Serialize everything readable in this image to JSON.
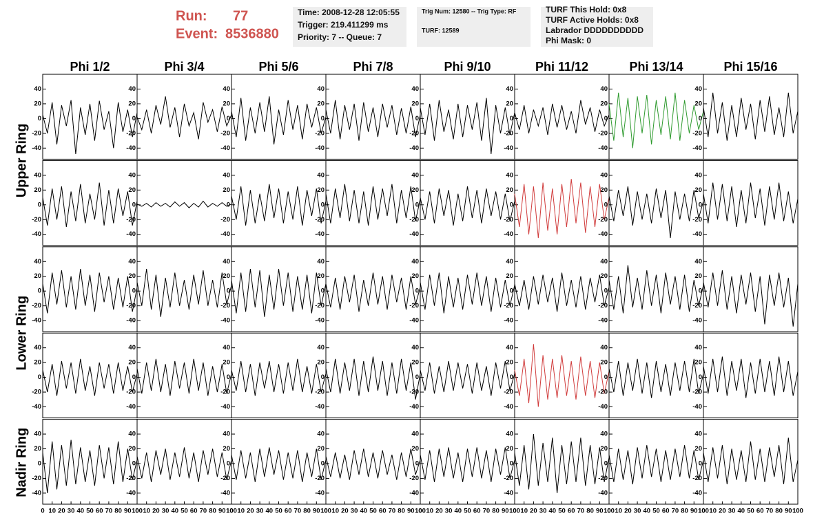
{
  "header": {
    "run_label": "Run:",
    "run": "77",
    "event_label": "Event:",
    "event": "8536880"
  },
  "info_boxes": [
    [
      "Time: 2008-12-28 12:05:55",
      "Trigger: 219.411299 ms",
      "Priority: 7 -- Queue: 7"
    ],
    [
      "Trig Num: 12580 -- Trig Type: RF",
      "TURF: 12589"
    ],
    [
      "TURF This Hold: 0x8",
      "TURF Active Holds: 0x8",
      "Labrador DDDDDDDDDD",
      "Phi Mask: 0"
    ]
  ],
  "chart_data": {
    "type": "line",
    "columns": [
      "Phi 1/2",
      "Phi 3/4",
      "Phi 5/6",
      "Phi 7/8",
      "Phi 9/10",
      "Phi 11/12",
      "Phi 13/14",
      "Phi 15/16"
    ],
    "row_labels": [
      "Upper Ring",
      "Lower Ring",
      "Nadir Ring"
    ],
    "ylim": [
      -55,
      60
    ],
    "yticks": [
      -40,
      -20,
      0,
      20,
      40
    ],
    "xlim": [
      0,
      100
    ],
    "xticks": [
      0,
      10,
      20,
      30,
      40,
      50,
      60,
      70,
      80,
      90,
      100
    ],
    "x": [
      0,
      5,
      10,
      15,
      20,
      25,
      30,
      35,
      40,
      45,
      50,
      55,
      60,
      65,
      70,
      75,
      80,
      85,
      90,
      95,
      100
    ],
    "series": [
      {
        "color": "#000000",
        "values": [
          5,
          -20,
          22,
          -35,
          18,
          -10,
          25,
          -48,
          15,
          -22,
          20,
          -30,
          24,
          -15,
          10,
          -40,
          22,
          -18,
          12,
          -25,
          8
        ]
      },
      {
        "color": "#000000",
        "values": [
          2,
          -15,
          12,
          -20,
          18,
          -8,
          30,
          -12,
          15,
          -25,
          20,
          -10,
          8,
          -28,
          22,
          -5,
          12,
          -18,
          16,
          -10,
          5
        ]
      },
      {
        "color": "#000000",
        "values": [
          10,
          -25,
          28,
          -30,
          15,
          -20,
          22,
          -18,
          30,
          -35,
          12,
          -22,
          25,
          -15,
          18,
          -28,
          20,
          -12,
          15,
          -20,
          2
        ]
      },
      {
        "color": "#000000",
        "values": [
          12,
          -20,
          25,
          -28,
          18,
          -15,
          20,
          -30,
          22,
          -18,
          15,
          -25,
          20,
          -12,
          18,
          -22,
          14,
          -20,
          16,
          -25,
          5
        ]
      },
      {
        "color": "#000000",
        "values": [
          15,
          -22,
          20,
          -30,
          25,
          -18,
          12,
          -28,
          20,
          -25,
          18,
          -15,
          22,
          -30,
          28,
          -48,
          18,
          -20,
          15,
          -22,
          8
        ]
      },
      {
        "color": "#000000",
        "values": [
          8,
          -15,
          18,
          -20,
          12,
          -10,
          15,
          -22,
          20,
          -12,
          18,
          -15,
          10,
          -20,
          25,
          -8,
          15,
          -18,
          12,
          -10,
          5
        ]
      },
      {
        "color": "#2e9a2e",
        "values": [
          20,
          -30,
          35,
          -25,
          28,
          -40,
          30,
          -20,
          32,
          -35,
          25,
          -22,
          30,
          -28,
          35,
          -30,
          25,
          -20,
          18,
          -15,
          10
        ]
      },
      {
        "color": "#000000",
        "values": [
          15,
          -25,
          35,
          -20,
          22,
          -30,
          18,
          -25,
          28,
          -15,
          20,
          -28,
          25,
          -18,
          30,
          -22,
          15,
          -25,
          35,
          -20,
          10
        ]
      },
      {
        "color": "#000000",
        "values": [
          10,
          -28,
          22,
          -20,
          25,
          -30,
          18,
          -22,
          28,
          -25,
          15,
          -20,
          30,
          -28,
          20,
          -25,
          22,
          -15,
          18,
          -28,
          5
        ]
      },
      {
        "color": "#000000",
        "values": [
          1,
          -2,
          2,
          -3,
          3,
          -2,
          2,
          -3,
          4,
          -2,
          3,
          -4,
          2,
          -3,
          5,
          -3,
          2,
          -2,
          3,
          -2,
          1
        ]
      },
      {
        "color": "#000000",
        "values": [
          12,
          -20,
          25,
          -28,
          20,
          -25,
          15,
          -22,
          28,
          -18,
          22,
          -25,
          18,
          -20,
          25,
          -28,
          20,
          -15,
          22,
          -25,
          5
        ]
      },
      {
        "color": "#000000",
        "values": [
          15,
          -25,
          22,
          -18,
          28,
          -22,
          20,
          -25,
          18,
          -28,
          25,
          -20,
          22,
          -15,
          28,
          -25,
          20,
          -18,
          25,
          -22,
          8
        ]
      },
      {
        "color": "#000000",
        "values": [
          10,
          -20,
          18,
          -25,
          22,
          -15,
          20,
          -28,
          15,
          -22,
          25,
          -18,
          20,
          -25,
          22,
          -15,
          18,
          -20,
          15,
          -22,
          5
        ]
      },
      {
        "color": "#d03a3a",
        "values": [
          15,
          -30,
          28,
          -40,
          25,
          -45,
          30,
          -35,
          22,
          -40,
          28,
          -30,
          35,
          -25,
          30,
          -38,
          25,
          -30,
          28,
          -20,
          10
        ]
      },
      {
        "color": "#000000",
        "values": [
          12,
          -22,
          20,
          -15,
          25,
          -28,
          18,
          -20,
          15,
          -25,
          22,
          -18,
          20,
          -45,
          18,
          -20,
          15,
          -22,
          20,
          -18,
          5
        ]
      },
      {
        "color": "#000000",
        "values": [
          15,
          -25,
          30,
          -20,
          28,
          -22,
          25,
          -30,
          20,
          -25,
          30,
          -18,
          22,
          -28,
          25,
          -20,
          30,
          -22,
          18,
          -25,
          8
        ]
      },
      {
        "color": "#000000",
        "values": [
          10,
          -30,
          25,
          -18,
          28,
          -22,
          20,
          -25,
          30,
          -20,
          22,
          -28,
          25,
          -15,
          20,
          -25,
          18,
          -22,
          20,
          -28,
          5
        ]
      },
      {
        "color": "#000000",
        "values": [
          12,
          -20,
          30,
          -25,
          22,
          -35,
          18,
          -22,
          25,
          -20,
          15,
          -25,
          22,
          -18,
          28,
          -20,
          15,
          -22,
          25,
          -18,
          8
        ]
      },
      {
        "color": "#000000",
        "values": [
          15,
          -30,
          25,
          -28,
          30,
          -22,
          28,
          -35,
          22,
          -25,
          30,
          -20,
          25,
          -28,
          20,
          -25,
          22,
          -30,
          25,
          -20,
          10
        ]
      },
      {
        "color": "#000000",
        "values": [
          10,
          -22,
          18,
          -25,
          20,
          -15,
          22,
          -28,
          15,
          -20,
          25,
          -18,
          20,
          -25,
          22,
          -15,
          18,
          -25,
          20,
          -18,
          5
        ]
      },
      {
        "color": "#000000",
        "values": [
          12,
          -25,
          22,
          -20,
          25,
          -30,
          20,
          -22,
          18,
          -25,
          22,
          -18,
          25,
          -20,
          20,
          -28,
          18,
          -22,
          15,
          -20,
          8
        ]
      },
      {
        "color": "#000000",
        "values": [
          10,
          -20,
          15,
          -25,
          20,
          -18,
          22,
          -15,
          18,
          -28,
          25,
          -20,
          15,
          -22,
          20,
          -25,
          18,
          -15,
          22,
          -20,
          5
        ]
      },
      {
        "color": "#000000",
        "values": [
          15,
          -25,
          20,
          -30,
          35,
          -22,
          18,
          -25,
          28,
          -20,
          22,
          -30,
          25,
          -18,
          20,
          -25,
          22,
          -28,
          15,
          -20,
          8
        ]
      },
      {
        "color": "#000000",
        "values": [
          12,
          -22,
          25,
          -20,
          28,
          -25,
          20,
          -30,
          22,
          -18,
          25,
          -28,
          20,
          -45,
          22,
          -20,
          25,
          -22,
          18,
          -48,
          10
        ]
      },
      {
        "color": "#000000",
        "values": [
          10,
          -20,
          18,
          -25,
          22,
          -15,
          20,
          -22,
          25,
          -18,
          15,
          -25,
          20,
          -15,
          18,
          -22,
          20,
          -18,
          15,
          -20,
          5
        ]
      },
      {
        "color": "#000000",
        "values": [
          12,
          -22,
          20,
          -18,
          25,
          -20,
          18,
          -25,
          22,
          -15,
          20,
          -22,
          25,
          -18,
          20,
          -25,
          15,
          -20,
          18,
          -22,
          5
        ]
      },
      {
        "color": "#000000",
        "values": [
          10,
          -18,
          22,
          -20,
          18,
          -25,
          20,
          -15,
          22,
          -20,
          18,
          -22,
          20,
          -18,
          25,
          -20,
          15,
          -22,
          18,
          -20,
          5
        ]
      },
      {
        "color": "#000000",
        "values": [
          12,
          -20,
          25,
          -22,
          20,
          -18,
          25,
          -25,
          22,
          -20,
          28,
          -18,
          22,
          -25,
          20,
          -22,
          25,
          -18,
          20,
          -30,
          5
        ]
      },
      {
        "color": "#000000",
        "values": [
          10,
          -18,
          20,
          -22,
          15,
          -20,
          22,
          -18,
          20,
          -15,
          18,
          -22,
          20,
          -18,
          15,
          -25,
          20,
          -15,
          22,
          -18,
          5
        ]
      },
      {
        "color": "#d03a3a",
        "values": [
          10,
          -25,
          25,
          -35,
          45,
          -40,
          30,
          -30,
          25,
          -28,
          30,
          -25,
          22,
          -30,
          28,
          -25,
          22,
          -28,
          20,
          -22,
          8
        ]
      },
      {
        "color": "#000000",
        "values": [
          12,
          -20,
          22,
          -25,
          20,
          -18,
          25,
          -22,
          20,
          -28,
          22,
          -20,
          18,
          -25,
          20,
          -18,
          22,
          -20,
          25,
          -22,
          5
        ]
      },
      {
        "color": "#000000",
        "values": [
          15,
          -22,
          25,
          -20,
          28,
          -25,
          22,
          -18,
          25,
          -28,
          20,
          -22,
          25,
          -20,
          22,
          -25,
          28,
          -20,
          22,
          -25,
          8
        ]
      },
      {
        "color": "#000000",
        "values": [
          15,
          -40,
          30,
          -35,
          25,
          -30,
          32,
          -28,
          22,
          -25,
          18,
          -30,
          25,
          -20,
          22,
          -28,
          30,
          -25,
          20,
          -22,
          5
        ]
      },
      {
        "color": "#000000",
        "values": [
          10,
          -20,
          15,
          -25,
          18,
          -15,
          20,
          -22,
          15,
          -18,
          22,
          -20,
          15,
          -25,
          18,
          -15,
          20,
          -18,
          15,
          -22,
          5
        ]
      },
      {
        "color": "#000000",
        "values": [
          12,
          -22,
          18,
          -20,
          15,
          -25,
          20,
          -18,
          22,
          -15,
          18,
          -22,
          15,
          -20,
          18,
          -25,
          15,
          -18,
          20,
          -22,
          5
        ]
      },
      {
        "color": "#000000",
        "values": [
          10,
          -18,
          15,
          -20,
          12,
          -22,
          18,
          -15,
          20,
          -18,
          15,
          -20,
          18,
          -15,
          12,
          -22,
          15,
          -18,
          20,
          -15,
          5
        ]
      },
      {
        "color": "#000000",
        "values": [
          12,
          -22,
          18,
          -25,
          20,
          -18,
          22,
          -20,
          15,
          -25,
          20,
          -18,
          22,
          -20,
          18,
          -25,
          20,
          -15,
          22,
          -20,
          5
        ]
      },
      {
        "color": "#000000",
        "values": [
          15,
          -30,
          25,
          -35,
          40,
          -30,
          28,
          -25,
          35,
          -40,
          25,
          -28,
          30,
          -25,
          35,
          -30,
          25,
          -28,
          22,
          -25,
          8
        ]
      },
      {
        "color": "#000000",
        "values": [
          12,
          -25,
          20,
          -22,
          18,
          -28,
          22,
          -20,
          25,
          -18,
          20,
          -25,
          18,
          -22,
          20,
          -18,
          25,
          -20,
          18,
          -22,
          5
        ]
      },
      {
        "color": "#000000",
        "values": [
          15,
          -25,
          22,
          -20,
          25,
          -28,
          20,
          -22,
          18,
          -25,
          30,
          -22,
          20,
          -25,
          22,
          -18,
          25,
          -28,
          35,
          -25,
          5
        ]
      }
    ]
  }
}
